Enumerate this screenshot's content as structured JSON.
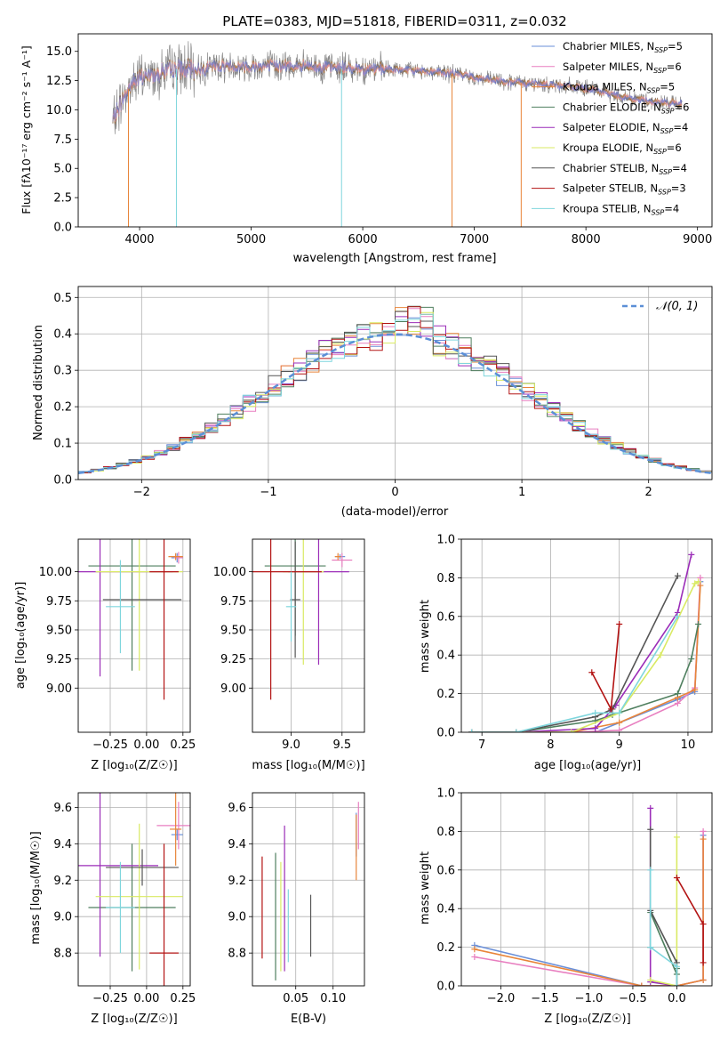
{
  "colors": [
    "#6a8fd8",
    "#e87fc0",
    "#e8853a",
    "#4f7f5f",
    "#9b2db8",
    "#d9ea63",
    "#555555",
    "#b31313",
    "#7fd6dd"
  ],
  "spectrum": {
    "title": "PLATE=0383, MJD=51818, FIBERID=0311, z=0.032",
    "xlabel": "wavelength [Angstrom, rest frame]",
    "ylabel": "Flux [fλ10⁻¹⁷ erg cm⁻² s⁻¹ A⁻¹]",
    "legend": [
      "Chabrier MILES, N_SSP=5",
      "Salpeter MILES, N_SSP=6",
      "Kroupa MILES, N_SSP=5",
      "Chabrier ELODIE, N_SSP=6",
      "Salpeter ELODIE, N_SSP=4",
      "Kroupa ELODIE, N_SSP=6",
      "Chabrier STELIB, N_SSP=4",
      "Salpeter STELIB, N_SSP=3",
      "Kroupa STELIB, N_SSP=4"
    ]
  },
  "normdist": {
    "xlabel": "(data-model)/error",
    "ylabel": "Normed distribution",
    "legend": "𝒩(0, 1)"
  },
  "panels": {
    "p3": {
      "xlabel": "Z [log₁₀(Z/Z☉)]",
      "ylabel": "age  [log₁₀(age/yr)]"
    },
    "p4": {
      "xlabel": "mass [log₁₀(M/M☉)]"
    },
    "p5": {
      "xlabel": "age  [log₁₀(age/yr)]",
      "ylabel": "mass weight"
    },
    "p6": {
      "xlabel": "Z [log₁₀(Z/Z☉)]",
      "ylabel": "mass [log₁₀(M/M☉)]"
    },
    "p7": {
      "xlabel": "E(B-V)"
    },
    "p8": {
      "xlabel": "Z [log₁₀(Z/Z☉)]",
      "ylabel": "mass weight"
    }
  },
  "chart_data": [
    {
      "type": "line",
      "name": "spectrum",
      "title": "PLATE=0383, MJD=51818, FIBERID=0311, z=0.032",
      "xlim": [
        3450,
        9130
      ],
      "ylim": [
        0,
        16.5
      ],
      "xticks": [
        4000,
        5000,
        6000,
        7000,
        8000,
        9000
      ],
      "yticks": [
        0.0,
        2.5,
        5.0,
        7.5,
        10.0,
        12.5,
        15.0
      ],
      "data_profile": {
        "x": [
          3760,
          3850,
          3950,
          4100,
          4300,
          4500,
          4700,
          4900,
          5200,
          5500,
          5800,
          6100,
          6400,
          6600,
          6900,
          7100,
          7200,
          7400,
          7600,
          7800,
          8000,
          8200,
          8400,
          8600,
          8860
        ],
        "y": [
          9.0,
          11.0,
          12.5,
          13.0,
          13.5,
          13.4,
          13.8,
          13.7,
          13.8,
          13.7,
          13.6,
          13.5,
          13.4,
          13.3,
          13.0,
          12.6,
          12.5,
          12.3,
          12.2,
          12.1,
          11.8,
          11.4,
          11.0,
          10.7,
          10.5
        ]
      },
      "grid": false,
      "legend_position": "top-right"
    },
    {
      "type": "line",
      "name": "residual distribution",
      "xlim": [
        -2.5,
        2.5
      ],
      "ylim": [
        0,
        0.53
      ],
      "xticks": [
        -2,
        -1,
        0,
        1,
        2
      ],
      "yticks": [
        0.0,
        0.1,
        0.2,
        0.3,
        0.4,
        0.5
      ],
      "bin_edges": [
        -2.5,
        -2.4,
        -2.3,
        -2.2,
        -2.1,
        -2.0,
        -1.9,
        -1.8,
        -1.7,
        -1.6,
        -1.5,
        -1.4,
        -1.3,
        -1.2,
        -1.1,
        -1.0,
        -0.9,
        -0.8,
        -0.7,
        -0.6,
        -0.5,
        -0.4,
        -0.3,
        -0.2,
        -0.1,
        0.0,
        0.1,
        0.2,
        0.3,
        0.4,
        0.5,
        0.6,
        0.7,
        0.8,
        0.9,
        1.0,
        1.1,
        1.2,
        1.3,
        1.4,
        1.5,
        1.6,
        1.7,
        1.8,
        1.9,
        2.0,
        2.1,
        2.2,
        2.3,
        2.4,
        2.5
      ],
      "gaussian": "normal(0,1)",
      "grid": true,
      "legend_position": "top-right"
    },
    {
      "type": "scatter",
      "name": "Z vs age",
      "xlim": [
        -0.47,
        0.3
      ],
      "ylim": [
        8.62,
        10.28
      ],
      "xticks": [
        -0.25,
        0.0,
        0.25
      ],
      "yticks": [
        9.0,
        9.25,
        9.5,
        9.75,
        10.0
      ],
      "points": [
        {
          "c": 0,
          "x": 0.21,
          "y": 10.12,
          "xe": 0.04,
          "ye": 0.04
        },
        {
          "c": 1,
          "x": 0.22,
          "y": 10.12,
          "xe": 0.03,
          "ye": 0.05
        },
        {
          "c": 2,
          "x": 0.2,
          "y": 10.13,
          "xe": 0.05,
          "ye": 0.03
        },
        {
          "c": 3,
          "x": -0.1,
          "y": 10.05,
          "xe": 0.3,
          "ye": 0.9
        },
        {
          "c": 4,
          "x": -0.32,
          "y": 10.0,
          "xe": 0.5,
          "ye": 0.9
        },
        {
          "c": 5,
          "x": -0.05,
          "y": 10.0,
          "xe": 0.3,
          "ye": 0.85
        },
        {
          "c": 6,
          "x": -0.03,
          "y": 9.76,
          "xe": 0.27,
          "ye": 0.0
        },
        {
          "c": 7,
          "x": 0.12,
          "y": 10.0,
          "xe": 0.1,
          "ye": 1.1
        },
        {
          "c": 8,
          "x": -0.18,
          "y": 9.7,
          "xe": 0.1,
          "ye": 0.4
        }
      ]
    },
    {
      "type": "scatter",
      "name": "mass vs age",
      "xlim": [
        8.62,
        9.72
      ],
      "ylim": [
        8.62,
        10.28
      ],
      "xticks": [
        9.0,
        9.5
      ],
      "yticks": [
        9.0,
        9.25,
        9.5,
        9.75,
        10.0
      ],
      "points": [
        {
          "c": 0,
          "x": 9.48,
          "y": 10.13,
          "xe": 0.05,
          "ye": 0.02
        },
        {
          "c": 1,
          "x": 9.5,
          "y": 10.1,
          "xe": 0.1,
          "ye": 0.06
        },
        {
          "c": 2,
          "x": 9.46,
          "y": 10.13,
          "xe": 0.03,
          "ye": 0.03
        },
        {
          "c": 3,
          "x": 9.04,
          "y": 10.05,
          "xe": 0.3,
          "ye": 0.6
        },
        {
          "c": 4,
          "x": 9.27,
          "y": 10.0,
          "xe": 0.3,
          "ye": 0.8
        },
        {
          "c": 5,
          "x": 9.12,
          "y": 10.0,
          "xe": 0.2,
          "ye": 0.8
        },
        {
          "c": 6,
          "x": 9.04,
          "y": 9.76,
          "xe": 0.05,
          "ye": 0.5
        },
        {
          "c": 7,
          "x": 8.8,
          "y": 10.0,
          "xe": 0.5,
          "ye": 1.1
        },
        {
          "c": 8,
          "x": 9.0,
          "y": 9.7,
          "xe": 0.05,
          "ye": 0.3
        }
      ]
    },
    {
      "type": "line",
      "name": "age vs mass weight",
      "xlim": [
        6.7,
        10.35
      ],
      "ylim": [
        0,
        1.0
      ],
      "xticks": [
        7,
        8,
        9,
        10
      ],
      "yticks": [
        0.0,
        0.2,
        0.4,
        0.6,
        0.8,
        1.0
      ],
      "series": [
        {
          "c": 0,
          "x": [
            6.85,
            7.5,
            8.3,
            8.65,
            9.85,
            10.1,
            10.18
          ],
          "y": [
            0.0,
            0.0,
            0.0,
            0.0,
            0.17,
            0.21,
            0.78
          ]
        },
        {
          "c": 1,
          "x": [
            6.85,
            7.5,
            8.3,
            9.0,
            9.85,
            10.1,
            10.18
          ],
          "y": [
            0.0,
            0.0,
            0.0,
            0.01,
            0.15,
            0.23,
            0.8
          ]
        },
        {
          "c": 2,
          "x": [
            6.85,
            7.5,
            8.3,
            9.0,
            9.85,
            10.1,
            10.18
          ],
          "y": [
            0.0,
            0.0,
            0.0,
            0.05,
            0.18,
            0.22,
            0.76
          ]
        },
        {
          "c": 3,
          "x": [
            6.85,
            7.5,
            8.65,
            8.9,
            9.85,
            10.05,
            10.15
          ],
          "y": [
            0.0,
            0.0,
            0.06,
            0.09,
            0.2,
            0.38,
            0.56
          ]
        },
        {
          "c": 4,
          "x": [
            6.85,
            7.5,
            8.65,
            8.95,
            9.85,
            10.05
          ],
          "y": [
            0.0,
            0.0,
            0.02,
            0.14,
            0.62,
            0.92
          ]
        },
        {
          "c": 5,
          "x": [
            6.85,
            7.5,
            8.3,
            9.0,
            9.6,
            10.1,
            10.15
          ],
          "y": [
            0.0,
            0.0,
            0.0,
            0.1,
            0.4,
            0.77,
            0.78
          ]
        },
        {
          "c": 6,
          "x": [
            6.85,
            7.5,
            8.65,
            8.9,
            9.85
          ],
          "y": [
            0.0,
            0.0,
            0.08,
            0.12,
            0.81
          ]
        },
        {
          "c": 7,
          "x": [
            8.6,
            8.88,
            9.0
          ],
          "y": [
            0.31,
            0.12,
            0.56
          ]
        },
        {
          "c": 8,
          "x": [
            6.85,
            7.5,
            8.65,
            9.0,
            9.85
          ],
          "y": [
            0.0,
            0.0,
            0.1,
            0.1,
            0.6
          ]
        }
      ]
    },
    {
      "type": "scatter",
      "name": "Z vs mass",
      "xlim": [
        -0.47,
        0.3
      ],
      "ylim": [
        8.62,
        9.68
      ],
      "xticks": [
        -0.25,
        0.0,
        0.25
      ],
      "yticks": [
        8.8,
        9.0,
        9.2,
        9.4,
        9.6
      ],
      "points": [
        {
          "c": 0,
          "x": 0.21,
          "y": 9.45,
          "xe": 0.04,
          "ye": 0.03
        },
        {
          "c": 1,
          "x": 0.22,
          "y": 9.5,
          "xe": 0.15,
          "ye": 0.13
        },
        {
          "c": 2,
          "x": 0.2,
          "y": 9.48,
          "xe": 0.04,
          "ye": 0.2
        },
        {
          "c": 3,
          "x": -0.1,
          "y": 9.05,
          "xe": 0.3,
          "ye": 0.35
        },
        {
          "c": 4,
          "x": -0.32,
          "y": 9.28,
          "xe": 0.4,
          "ye": 0.5
        },
        {
          "c": 5,
          "x": -0.05,
          "y": 9.11,
          "xe": 0.3,
          "ye": 0.4
        },
        {
          "c": 6,
          "x": -0.03,
          "y": 9.27,
          "xe": 0.25,
          "ye": 0.1
        },
        {
          "c": 7,
          "x": 0.12,
          "y": 8.8,
          "xe": 0.1,
          "ye": 0.6
        },
        {
          "c": 8,
          "x": -0.18,
          "y": 9.05,
          "xe": 0.1,
          "ye": 0.25
        }
      ]
    },
    {
      "type": "scatter",
      "name": "E(B-V) vs mass",
      "xlim": [
        -0.008,
        0.142
      ],
      "ylim": [
        8.62,
        9.68
      ],
      "xticks": [
        0.05,
        0.1
      ],
      "yticks": [
        8.8,
        9.0,
        9.2,
        9.4,
        9.6
      ],
      "points": [
        {
          "c": 0,
          "x": 0.131,
          "y": 9.45,
          "xe": 0,
          "ye": 0.12
        },
        {
          "c": 1,
          "x": 0.134,
          "y": 9.5,
          "xe": 0,
          "ye": 0.13
        },
        {
          "c": 2,
          "x": 0.131,
          "y": 9.38,
          "xe": 0,
          "ye": 0.18
        },
        {
          "c": 3,
          "x": 0.023,
          "y": 9.0,
          "xe": 0,
          "ye": 0.35
        },
        {
          "c": 4,
          "x": 0.035,
          "y": 9.1,
          "xe": 0,
          "ye": 0.4
        },
        {
          "c": 5,
          "x": 0.03,
          "y": 9.0,
          "xe": 0,
          "ye": 0.3
        },
        {
          "c": 6,
          "x": 0.07,
          "y": 8.95,
          "xe": 0,
          "ye": 0.17
        },
        {
          "c": 7,
          "x": 0.005,
          "y": 9.05,
          "xe": 0,
          "ye": 0.28
        },
        {
          "c": 8,
          "x": 0.04,
          "y": 8.95,
          "xe": 0,
          "ye": 0.2
        }
      ]
    },
    {
      "type": "line",
      "name": "Z vs mass weight",
      "xlim": [
        -2.45,
        0.4
      ],
      "ylim": [
        0,
        1.0
      ],
      "xticks": [
        -2.0,
        -1.5,
        -1.0,
        -0.5,
        0.0
      ],
      "yticks": [
        0.0,
        0.2,
        0.4,
        0.6,
        0.8,
        1.0
      ],
      "series": [
        {
          "c": 0,
          "x": [
            -2.3,
            -0.4,
            0.0,
            0.3,
            0.3
          ],
          "y": [
            0.21,
            0.0,
            0.0,
            0.03,
            0.78
          ]
        },
        {
          "c": 1,
          "x": [
            -2.3,
            -0.4,
            0.0,
            0.3,
            0.3
          ],
          "y": [
            0.15,
            0.0,
            0.0,
            0.03,
            0.8
          ]
        },
        {
          "c": 2,
          "x": [
            -2.3,
            -0.4,
            0.0,
            0.3,
            0.3
          ],
          "y": [
            0.19,
            0.0,
            0.0,
            0.03,
            0.76
          ]
        },
        {
          "c": 3,
          "x": [
            -0.3,
            -0.3,
            0.0,
            0.0
          ],
          "y": [
            0.2,
            0.38,
            0.06,
            0.09
          ]
        },
        {
          "c": 4,
          "x": [
            -0.3,
            -0.3,
            0.0
          ],
          "y": [
            0.92,
            0.02,
            0.0
          ]
        },
        {
          "c": 5,
          "x": [
            0.0,
            0.0,
            -0.3,
            0.0
          ],
          "y": [
            0.77,
            0.0,
            0.03,
            0.0
          ]
        },
        {
          "c": 6,
          "x": [
            -0.3,
            -0.3,
            0.0,
            0.0
          ],
          "y": [
            0.81,
            0.39,
            0.12,
            0.0
          ]
        },
        {
          "c": 7,
          "x": [
            0.0,
            0.3,
            0.3
          ],
          "y": [
            0.56,
            0.32,
            0.12
          ]
        },
        {
          "c": 8,
          "x": [
            -0.3,
            -0.3,
            0.0,
            0.0
          ],
          "y": [
            0.6,
            0.2,
            0.1,
            0.0
          ]
        }
      ]
    }
  ]
}
